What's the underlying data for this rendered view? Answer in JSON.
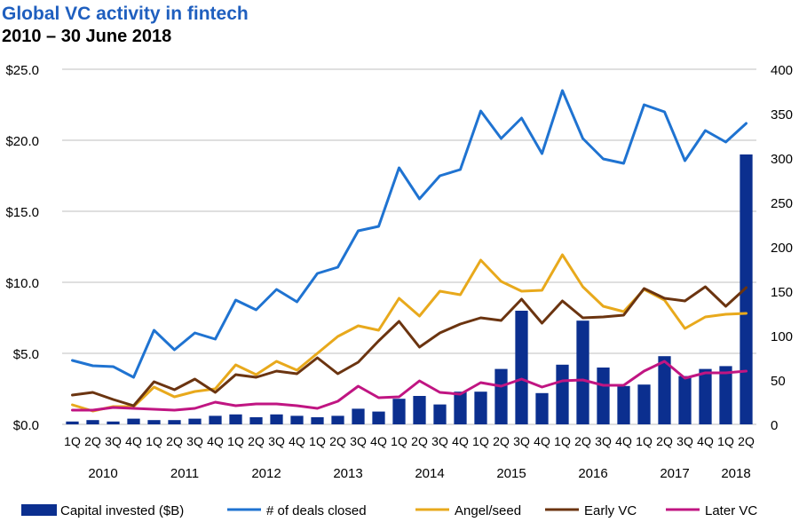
{
  "title": "Global VC activity in fintech",
  "subtitle": "2010 – 30 June 2018",
  "colors": {
    "capital": "#0b2f8f",
    "deals": "#1f73d1",
    "angel": "#e8a91c",
    "early": "#6b3410",
    "later": "#c01582",
    "title": "#1f5fbf",
    "axis": "#bfbfbf"
  },
  "chart_data": {
    "type": "bar",
    "quarters": [
      "1Q",
      "2Q",
      "3Q",
      "4Q",
      "1Q",
      "2Q",
      "3Q",
      "4Q",
      "1Q",
      "2Q",
      "3Q",
      "4Q",
      "1Q",
      "2Q",
      "3Q",
      "4Q",
      "1Q",
      "2Q",
      "3Q",
      "4Q",
      "1Q",
      "2Q",
      "3Q",
      "4Q",
      "1Q",
      "2Q",
      "3Q",
      "4Q",
      "1Q",
      "2Q",
      "3Q",
      "4Q",
      "1Q",
      "2Q"
    ],
    "years": [
      "2010",
      "2011",
      "2012",
      "2013",
      "2014",
      "2015",
      "2016",
      "2017",
      "2018"
    ],
    "y_left": {
      "ticks": [
        "$0.0",
        "$5.0",
        "$10.0",
        "$15.0",
        "$20.0",
        "$25.0"
      ],
      "range": [
        0,
        25
      ]
    },
    "y_right": {
      "ticks": [
        "0",
        "50",
        "100",
        "150",
        "200",
        "250",
        "300",
        "350",
        "400"
      ],
      "range": [
        0,
        400
      ]
    },
    "grid": true,
    "legend_position": "bottom",
    "series": [
      {
        "name": "Capital invested ($B)",
        "type": "bar",
        "axis": "left",
        "values": [
          0.2,
          0.3,
          0.2,
          0.4,
          0.3,
          0.3,
          0.4,
          0.6,
          0.7,
          0.5,
          0.7,
          0.6,
          0.5,
          0.6,
          1.1,
          0.9,
          1.8,
          2.0,
          1.4,
          2.3,
          2.3,
          3.9,
          8.0,
          2.2,
          4.2,
          7.3,
          4.0,
          2.7,
          2.8,
          4.8,
          3.4,
          3.9,
          4.1,
          19.0
        ]
      },
      {
        "name": "# of deals closed",
        "type": "line",
        "axis": "right",
        "values": [
          72,
          66,
          65,
          53,
          106,
          84,
          103,
          96,
          140,
          129,
          152,
          138,
          170,
          177,
          218,
          223,
          289,
          254,
          280,
          287,
          353,
          322,
          345,
          305,
          376,
          322,
          299,
          294,
          360,
          352,
          297,
          331,
          318,
          339
        ]
      },
      {
        "name": "Angel/seed",
        "type": "line",
        "axis": "right",
        "values": [
          22,
          15,
          20,
          20,
          42,
          31,
          37,
          40,
          67,
          56,
          71,
          61,
          80,
          99,
          111,
          106,
          142,
          122,
          150,
          146,
          185,
          161,
          150,
          151,
          191,
          155,
          133,
          127,
          152,
          140,
          108,
          121,
          124,
          125
        ]
      },
      {
        "name": "Early VC",
        "type": "line",
        "axis": "right",
        "values": [
          33,
          36,
          28,
          21,
          48,
          39,
          51,
          36,
          56,
          53,
          60,
          57,
          75,
          57,
          70,
          94,
          116,
          87,
          103,
          113,
          120,
          117,
          141,
          114,
          139,
          120,
          121,
          123,
          153,
          142,
          139,
          155,
          133,
          154
        ]
      },
      {
        "name": "Later VC",
        "type": "line",
        "axis": "right",
        "values": [
          16,
          16,
          19,
          18,
          17,
          16,
          18,
          25,
          21,
          23,
          23,
          21,
          18,
          26,
          43,
          30,
          31,
          49,
          36,
          34,
          47,
          43,
          51,
          42,
          49,
          50,
          44,
          44,
          60,
          71,
          52,
          58,
          58,
          60
        ]
      }
    ]
  }
}
